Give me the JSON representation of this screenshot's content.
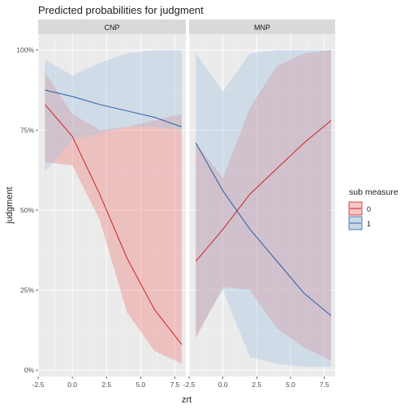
{
  "chart_data": {
    "type": "line",
    "title": "Predicted probabilities for judgment",
    "xlabel": "zrt",
    "ylabel": "judgment",
    "xlim": [
      -2.5,
      8.3
    ],
    "ylim": [
      -0.02,
      1.05
    ],
    "x_ticks": [
      -2.5,
      0.0,
      2.5,
      5.0,
      7.5
    ],
    "x_tick_labels": [
      "-2.5",
      "0.0",
      "2.5",
      "5.0",
      "7.5"
    ],
    "y_ticks": [
      0,
      0.25,
      0.5,
      0.75,
      1.0
    ],
    "y_tick_labels": [
      "0%",
      "25%",
      "50%",
      "75%",
      "100%"
    ],
    "grid": true,
    "legend": {
      "title": "sub measure",
      "placement": "right",
      "entries": [
        "0",
        "1"
      ]
    },
    "colors": {
      "series_0_line": "#cc2222",
      "series_0_fill": "#f08080",
      "series_1_line": "#2c5fa8",
      "series_1_fill": "#a6c4e0",
      "panel_bg": "#ebebeb",
      "strip_bg": "#d9d9d9",
      "grid": "#ffffff"
    },
    "panels": [
      {
        "strip": "CNP",
        "series": [
          {
            "legend_entry": "0",
            "x": [
              -2,
              0,
              2,
              4,
              6,
              8
            ],
            "y": [
              0.83,
              0.73,
              0.55,
              0.35,
              0.19,
              0.08
            ],
            "lower": [
              0.65,
              0.64,
              0.47,
              0.18,
              0.06,
              0.02
            ],
            "upper": [
              0.93,
              0.8,
              0.75,
              0.76,
              0.78,
              0.8
            ]
          },
          {
            "legend_entry": "1",
            "x": [
              -2,
              0,
              2,
              4,
              6,
              8
            ],
            "y": [
              0.875,
              0.855,
              0.83,
              0.81,
              0.79,
              0.76
            ],
            "lower": [
              0.62,
              0.72,
              0.74,
              0.76,
              0.76,
              0.75
            ],
            "upper": [
              0.97,
              0.92,
              0.96,
              0.99,
              1.0,
              1.0
            ]
          }
        ]
      },
      {
        "strip": "MNP",
        "series": [
          {
            "legend_entry": "0",
            "x": [
              -2,
              0,
              2,
              4,
              6,
              8
            ],
            "y": [
              0.34,
              0.44,
              0.55,
              0.63,
              0.71,
              0.78
            ],
            "lower": [
              0.1,
              0.26,
              0.25,
              0.13,
              0.07,
              0.03
            ],
            "upper": [
              0.71,
              0.6,
              0.82,
              0.95,
              0.99,
              1.0
            ]
          },
          {
            "legend_entry": "1",
            "x": [
              -2,
              0,
              2,
              4,
              6,
              8
            ],
            "y": [
              0.71,
              0.56,
              0.44,
              0.34,
              0.24,
              0.17
            ],
            "lower": [
              0.11,
              0.25,
              0.04,
              0.02,
              0.01,
              0.01
            ],
            "upper": [
              0.99,
              0.87,
              0.99,
              1.0,
              1.0,
              1.0
            ]
          }
        ]
      }
    ]
  }
}
